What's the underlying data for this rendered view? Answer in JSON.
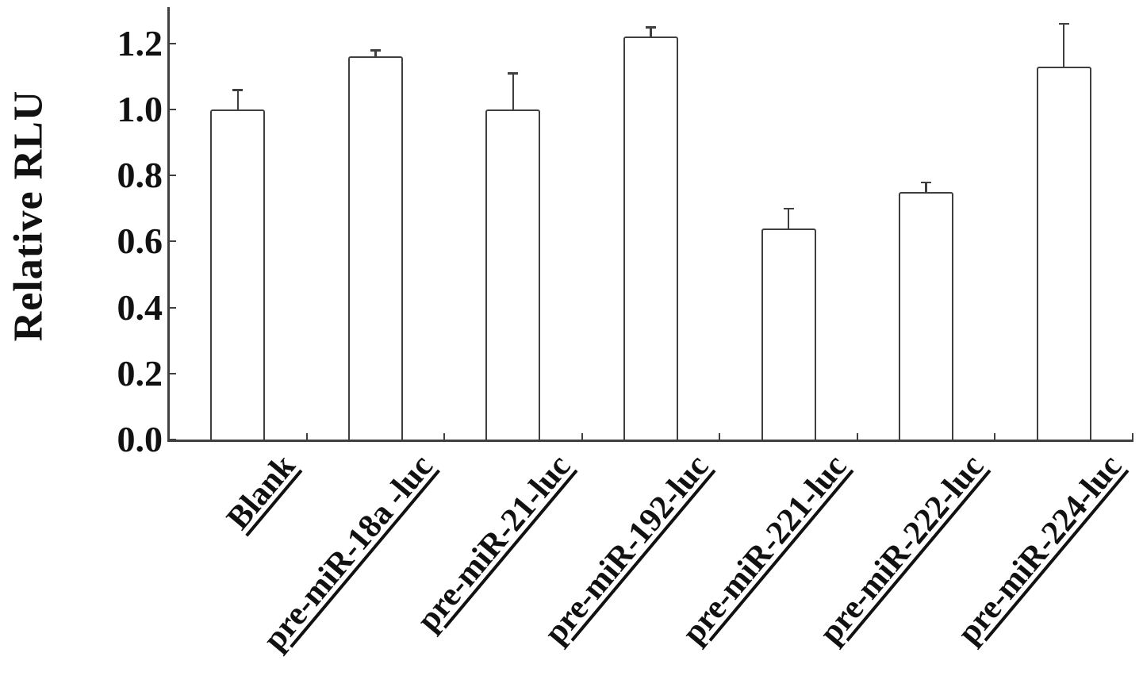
{
  "figure": {
    "background": "#ffffff",
    "axis_color": "#3f3f3f",
    "text_color": "#111111"
  },
  "chart_data": {
    "type": "bar",
    "title": "",
    "xlabel": "",
    "ylabel": "Relative RLU",
    "categories": [
      "Blank",
      "pre-miR-18a -luc",
      "pre-miR-21-luc",
      "pre-miR-192-luc",
      "pre-miR-221-luc",
      "pre-miR-222-luc",
      "pre-miR-224-luc"
    ],
    "values": [
      1.0,
      1.16,
      1.0,
      1.22,
      0.64,
      0.75,
      1.13
    ],
    "errors": [
      0.06,
      0.02,
      0.11,
      0.03,
      0.06,
      0.03,
      0.13
    ],
    "error_bars": "upper only, T-cap",
    "yticks": [
      "0.0",
      "0.2",
      "0.4",
      "0.6",
      "0.8",
      "1.0",
      "1.2"
    ],
    "ytick_values": [
      0.0,
      0.2,
      0.4,
      0.6,
      0.8,
      1.0,
      1.2
    ],
    "ylim": [
      0,
      1.31
    ],
    "grid": false,
    "legend": null,
    "bar_fill": "#ffffff",
    "bar_edge": "#3f3f3f",
    "x_label_rotation_deg": 50,
    "x_labels_underlined": true
  }
}
